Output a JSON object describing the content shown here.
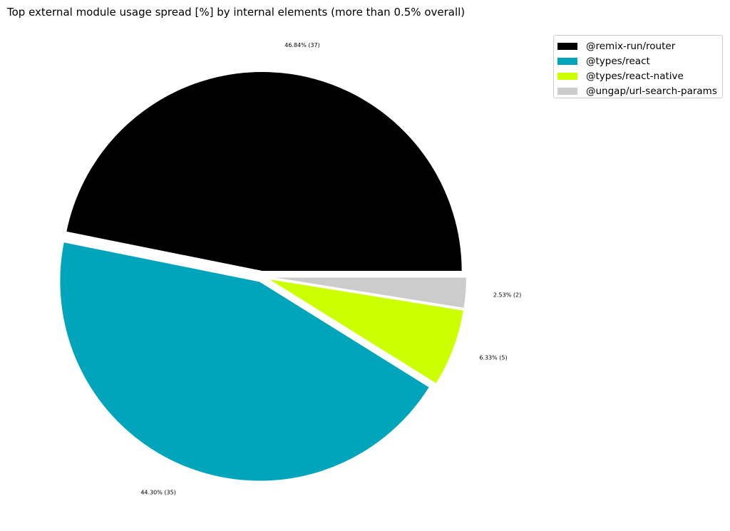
{
  "chart_data": {
    "type": "pie",
    "title": "Top external module usage spread [%] by internal elements (more than 0.5% overall)",
    "slices": [
      {
        "label": "@remix-run/router",
        "value": 46.84,
        "count": 37,
        "display": "46.84% (37)",
        "color": "#000000"
      },
      {
        "label": "@types/react",
        "value": 44.3,
        "count": 35,
        "display": "44.30% (35)",
        "color": "#00a5bb"
      },
      {
        "label": "@types/react-native",
        "value": 6.33,
        "count": 5,
        "display": "6.33% (5)",
        "color": "#ccff00"
      },
      {
        "label": "@ungap/url-search-params",
        "value": 2.53,
        "count": 2,
        "display": "2.53% (2)",
        "color": "#cccccc"
      }
    ],
    "start_angle": 0,
    "direction": "counterclockwise",
    "exploded": true,
    "legend_position": "top-right"
  }
}
